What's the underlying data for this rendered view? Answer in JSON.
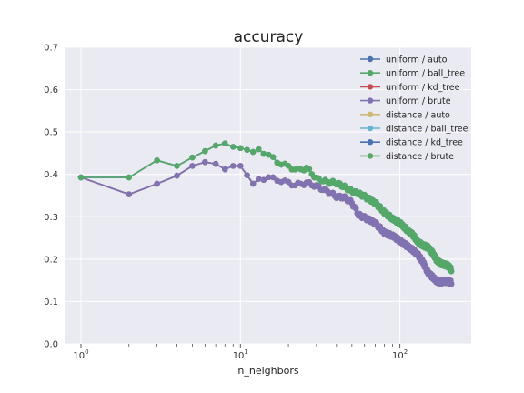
{
  "chart_data": {
    "type": "line",
    "title": "accuracy",
    "xlabel": "n_neighbors",
    "ylabel": "",
    "xscale": "log",
    "xlim": [
      0.8,
      280
    ],
    "ylim": [
      0.0,
      0.7
    ],
    "x_ticks": [
      {
        "value": 1,
        "base": "10",
        "exp": "0"
      },
      {
        "value": 10,
        "base": "10",
        "exp": "1"
      },
      {
        "value": 100,
        "base": "10",
        "exp": "2"
      }
    ],
    "y_ticks": [
      "0.0",
      "0.1",
      "0.2",
      "0.3",
      "0.4",
      "0.5",
      "0.6",
      "0.7"
    ],
    "grid": true,
    "legend_position": "top-right",
    "series": [
      {
        "name": "uniform / auto",
        "color": "#4c72b0",
        "style": "uniform"
      },
      {
        "name": "uniform / ball_tree",
        "color": "#55a868",
        "style": "uniform"
      },
      {
        "name": "uniform / kd_tree",
        "color": "#c44e52",
        "style": "uniform"
      },
      {
        "name": "uniform / brute",
        "color": "#8172b2",
        "style": "uniform"
      },
      {
        "name": "distance / auto",
        "color": "#ccb974",
        "style": "distance"
      },
      {
        "name": "distance / ball_tree",
        "color": "#64b5cd",
        "style": "distance"
      },
      {
        "name": "distance / kd_tree",
        "color": "#4c72b0",
        "style": "distance"
      },
      {
        "name": "distance / brute",
        "color": "#55a868",
        "style": "distance"
      }
    ],
    "uniform_curve": [
      [
        1,
        0.393
      ],
      [
        2,
        0.353
      ],
      [
        3,
        0.378
      ],
      [
        4,
        0.397
      ],
      [
        5,
        0.42
      ],
      [
        6,
        0.429
      ],
      [
        7,
        0.425
      ],
      [
        8,
        0.412
      ],
      [
        9,
        0.42
      ],
      [
        10,
        0.42
      ],
      [
        11,
        0.398
      ],
      [
        12,
        0.378
      ],
      [
        13,
        0.39
      ],
      [
        15,
        0.392
      ],
      [
        18,
        0.385
      ],
      [
        22,
        0.375
      ],
      [
        26,
        0.38
      ],
      [
        30,
        0.372
      ],
      [
        35,
        0.36
      ],
      [
        40,
        0.348
      ],
      [
        45,
        0.345
      ],
      [
        50,
        0.333
      ],
      [
        55,
        0.305
      ],
      [
        60,
        0.298
      ],
      [
        70,
        0.285
      ],
      [
        80,
        0.262
      ],
      [
        90,
        0.255
      ],
      [
        100,
        0.243
      ],
      [
        110,
        0.232
      ],
      [
        120,
        0.222
      ],
      [
        130,
        0.21
      ],
      [
        140,
        0.192
      ],
      [
        150,
        0.168
      ],
      [
        160,
        0.158
      ],
      [
        170,
        0.148
      ],
      [
        180,
        0.145
      ],
      [
        190,
        0.148
      ],
      [
        200,
        0.147
      ],
      [
        210,
        0.145
      ]
    ],
    "distance_curve": [
      [
        1,
        0.393
      ],
      [
        2,
        0.393
      ],
      [
        3,
        0.433
      ],
      [
        4,
        0.42
      ],
      [
        5,
        0.44
      ],
      [
        6,
        0.455
      ],
      [
        7,
        0.468
      ],
      [
        8,
        0.473
      ],
      [
        9,
        0.465
      ],
      [
        10,
        0.462
      ],
      [
        11,
        0.458
      ],
      [
        12,
        0.453
      ],
      [
        13,
        0.46
      ],
      [
        15,
        0.445
      ],
      [
        17,
        0.43
      ],
      [
        20,
        0.418
      ],
      [
        23,
        0.41
      ],
      [
        26,
        0.415
      ],
      [
        30,
        0.39
      ],
      [
        35,
        0.382
      ],
      [
        40,
        0.38
      ],
      [
        45,
        0.37
      ],
      [
        50,
        0.36
      ],
      [
        55,
        0.355
      ],
      [
        60,
        0.348
      ],
      [
        65,
        0.34
      ],
      [
        70,
        0.333
      ],
      [
        80,
        0.31
      ],
      [
        90,
        0.295
      ],
      [
        100,
        0.285
      ],
      [
        110,
        0.27
      ],
      [
        120,
        0.258
      ],
      [
        130,
        0.24
      ],
      [
        140,
        0.232
      ],
      [
        150,
        0.228
      ],
      [
        160,
        0.215
      ],
      [
        170,
        0.198
      ],
      [
        180,
        0.19
      ],
      [
        190,
        0.187
      ],
      [
        200,
        0.185
      ],
      [
        210,
        0.175
      ]
    ]
  }
}
